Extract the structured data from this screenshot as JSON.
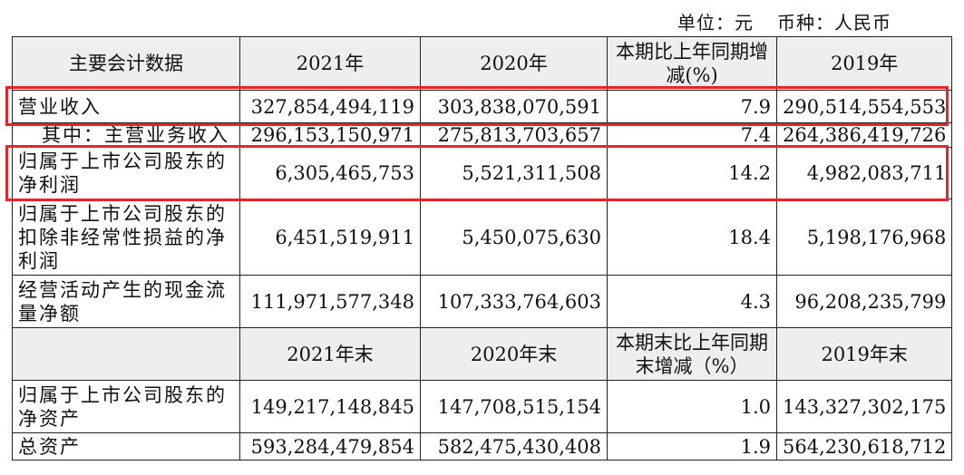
{
  "unit": {
    "unit_label": "单位：元",
    "currency_label": "币种：人民币"
  },
  "header1": [
    "主要会计数据",
    "2021年",
    "2020年",
    "本期比上年同期增减(%)",
    "2019年"
  ],
  "rows1": [
    {
      "label": "营业收入",
      "v2021": "327,854,494,119",
      "v2020": "303,838,070,591",
      "chg": "7.9",
      "v2019": "290,514,554,553"
    },
    {
      "label": "其中：主营业务收入",
      "v2021": "296,153,150,971",
      "v2020": "275,813,703,657",
      "chg": "7.4",
      "v2019": "264,386,419,726"
    },
    {
      "label": "归属于上市公司股东的净利润",
      "v2021": "6,305,465,753",
      "v2020": "5,521,311,508",
      "chg": "14.2",
      "v2019": "4,982,083,711"
    },
    {
      "label": "归属于上市公司股东的扣除非经常性损益的净利润",
      "v2021": "6,451,519,911",
      "v2020": "5,450,075,630",
      "chg": "18.4",
      "v2019": "5,198,176,968"
    },
    {
      "label": "经营活动产生的现金流量净额",
      "v2021": "111,971,577,348",
      "v2020": "107,333,764,603",
      "chg": "4.3",
      "v2019": "96,208,235,799"
    }
  ],
  "header2": [
    "",
    "2021年末",
    "2020年末",
    "本期末比上年同期末增减（%）",
    "2019年末"
  ],
  "rows2": [
    {
      "label": "归属于上市公司股东的净资产",
      "v2021": "149,217,148,845",
      "v2020": "147,708,515,154",
      "chg": "1.0",
      "v2019": "143,327,302,175"
    },
    {
      "label": "总资产",
      "v2021": "593,284,479,854",
      "v2020": "582,475,430,408",
      "chg": "1.9",
      "v2019": "564,230,618,712"
    }
  ],
  "colors": {
    "highlight": "#e8242a",
    "header_bg": "#eeeeee"
  }
}
